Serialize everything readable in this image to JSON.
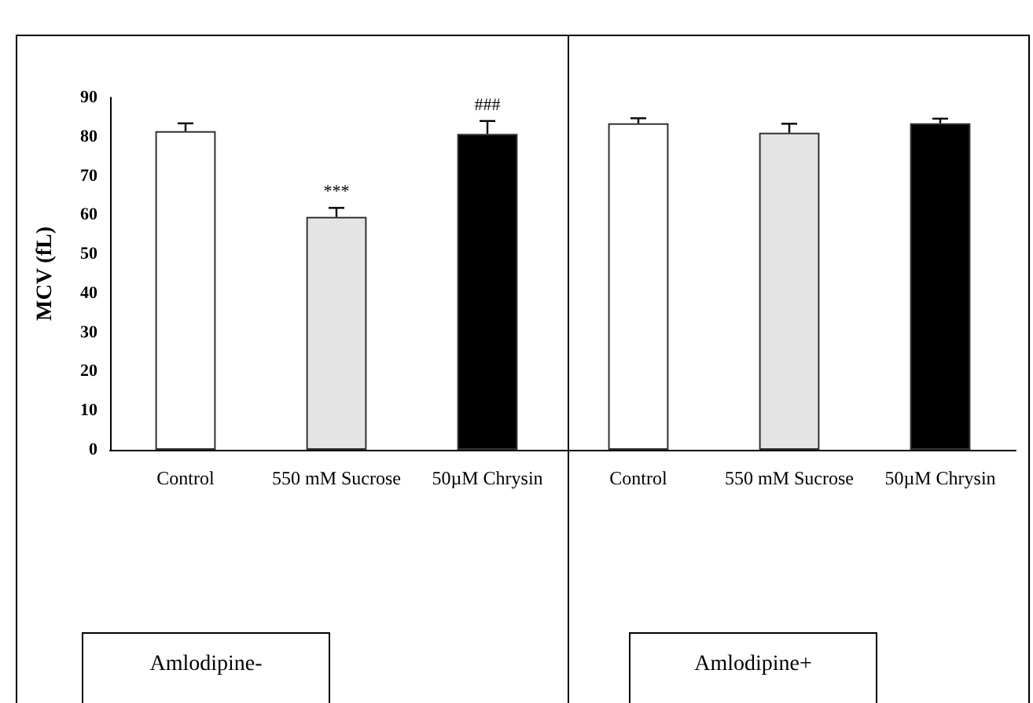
{
  "chart_data": {
    "type": "bar",
    "ylabel": "MCV (fL)",
    "categories": [
      "Control",
      "550 mM Sucrose",
      "50µM Chrysin",
      "Control",
      "550 mM Sucrose",
      "50µM Chrysin"
    ],
    "values": [
      81.4,
      59.5,
      80.7,
      83.4,
      81,
      83.4
    ],
    "colors": [
      "#ffffff",
      "#e4e4e4",
      "#000000",
      "#ffffff",
      "#e4e4e4",
      "#000000"
    ],
    "errors": [
      2,
      2.3,
      3.3,
      1.3,
      2.3,
      1.2
    ],
    "ylim": [
      0,
      90
    ],
    "yticks": [
      0,
      10,
      20,
      30,
      40,
      50,
      60,
      70,
      80,
      90
    ],
    "grid": false,
    "annotations": [
      "Amlodipine-",
      "Amlodipine+",
      "***",
      "###"
    ]
  }
}
